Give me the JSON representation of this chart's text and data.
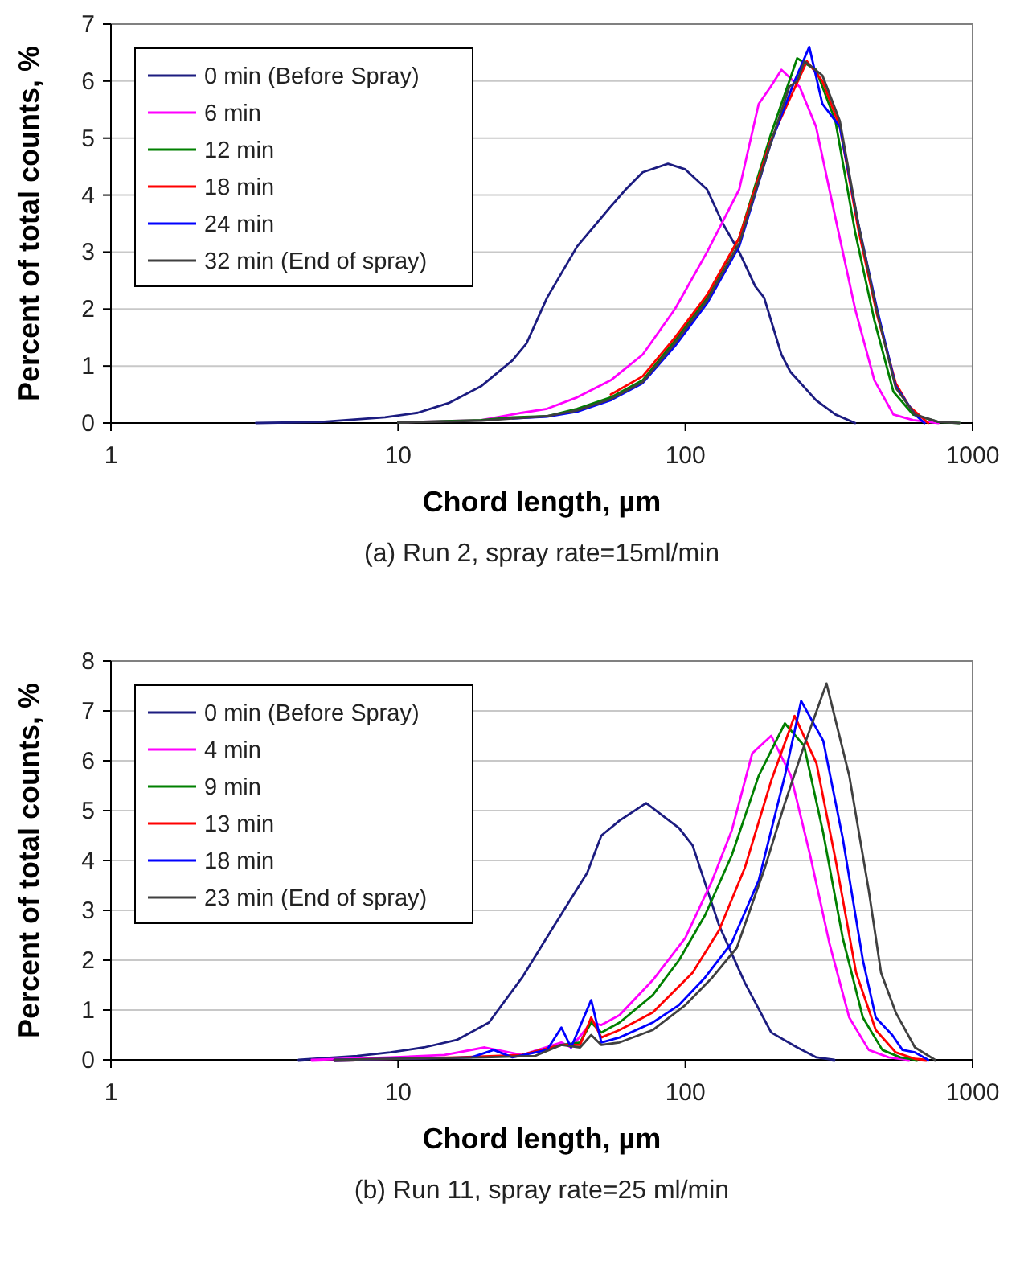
{
  "chart_data": [
    {
      "type": "line",
      "title": "(a) Run 2, spray rate=15ml/min",
      "xlabel": "Chord length, µm",
      "ylabel": "Percent of total counts, %",
      "log": "x",
      "grid": "y",
      "legend": "top left",
      "marker": "none",
      "line_style": "solid",
      "xlim": [
        1,
        1000
      ],
      "xticks": [
        1,
        10,
        100,
        1000
      ],
      "ylim": [
        0,
        7
      ],
      "yticks": [
        0,
        1,
        2,
        3,
        4,
        5,
        6,
        7
      ],
      "series": [
        {
          "name": "0 min (Before Spray)",
          "color": "#1c1c80",
          "x": [
            3.2,
            5.4,
            9,
            11.7,
            15,
            19.5,
            25,
            28,
            33,
            42,
            55,
            62,
            71,
            87,
            100,
            119,
            135,
            154,
            175,
            188,
            216,
            232,
            285,
            333,
            390
          ],
          "values": [
            0,
            0.02,
            0.1,
            0.18,
            0.35,
            0.65,
            1.1,
            1.4,
            2.2,
            3.1,
            3.8,
            4.1,
            4.4,
            4.55,
            4.45,
            4.1,
            3.5,
            3.0,
            2.4,
            2.2,
            1.2,
            0.9,
            0.4,
            0.15,
            0
          ]
        },
        {
          "name": "6 min",
          "color": "#ff00ff",
          "x": [
            10,
            19.5,
            27,
            33,
            42,
            55,
            71,
            92,
            119,
            154,
            180,
            198,
            216,
            250,
            285,
            333,
            390,
            455,
            530,
            620,
            760
          ],
          "values": [
            0.01,
            0.05,
            0.18,
            0.25,
            0.45,
            0.75,
            1.2,
            2.0,
            3.0,
            4.1,
            5.6,
            5.9,
            6.2,
            5.9,
            5.2,
            3.6,
            2.0,
            0.75,
            0.15,
            0.05,
            0
          ]
        },
        {
          "name": "12 min",
          "color": "#008000",
          "x": [
            10,
            19.5,
            25,
            33,
            42,
            55,
            71,
            92,
            119,
            154,
            198,
            245,
            285,
            333,
            390,
            455,
            530,
            620,
            760,
            900
          ],
          "values": [
            0.01,
            0.05,
            0.1,
            0.12,
            0.25,
            0.45,
            0.75,
            1.45,
            2.2,
            3.25,
            5.05,
            6.4,
            6.2,
            5.3,
            3.35,
            1.8,
            0.55,
            0.15,
            0.02,
            0
          ]
        },
        {
          "name": "18 min",
          "color": "#ff0000",
          "x": [
            55,
            71,
            92,
            119,
            154,
            198,
            265,
            300,
            345,
            400,
            465,
            540,
            600,
            700
          ],
          "values": [
            0.5,
            0.82,
            1.5,
            2.25,
            3.25,
            4.95,
            6.35,
            6.0,
            5.2,
            3.4,
            1.9,
            0.7,
            0.3,
            0
          ]
        },
        {
          "name": "24 min",
          "color": "#0000ff",
          "x": [
            25,
            33,
            42,
            55,
            71,
            92,
            119,
            154,
            198,
            240,
            270,
            300,
            345,
            400,
            465,
            540,
            630,
            680
          ],
          "values": [
            0.08,
            0.11,
            0.2,
            0.4,
            0.7,
            1.35,
            2.1,
            3.1,
            4.9,
            6.0,
            6.6,
            5.6,
            5.2,
            3.5,
            2.0,
            0.65,
            0.15,
            0
          ]
        },
        {
          "name": "32 min (End of spray)",
          "color": "#404040",
          "x": [
            10,
            19.5,
            25,
            33,
            42,
            55,
            71,
            92,
            119,
            154,
            198,
            230,
            245,
            260,
            300,
            345,
            400,
            465,
            540,
            630,
            760,
            900
          ],
          "values": [
            0.01,
            0.04,
            0.08,
            0.12,
            0.22,
            0.42,
            0.72,
            1.4,
            2.15,
            3.15,
            4.9,
            5.9,
            6.0,
            6.35,
            6.1,
            5.3,
            3.5,
            1.95,
            0.62,
            0.15,
            0.02,
            0
          ]
        }
      ]
    },
    {
      "type": "line",
      "title": "(b) Run 11, spray rate=25 ml/min",
      "xlabel": "Chord length, µm",
      "ylabel": "Percent of total counts, %",
      "log": "x",
      "grid": "y",
      "legend": "top left",
      "marker": "none",
      "line_style": "solid",
      "xlim": [
        1,
        1000
      ],
      "xticks": [
        1,
        10,
        100,
        1000
      ],
      "ylim": [
        0,
        8
      ],
      "yticks": [
        0,
        1,
        2,
        3,
        4,
        5,
        6,
        7,
        8
      ],
      "series": [
        {
          "name": "0 min (Before Spray)",
          "color": "#1c1c80",
          "x": [
            4.5,
            7.2,
            9.4,
            12.3,
            16,
            20.7,
            27,
            35,
            45.5,
            51,
            59,
            73,
            95,
            106,
            131,
            161,
            199,
            245,
            286,
            330
          ],
          "values": [
            0,
            0.08,
            0.15,
            0.25,
            0.4,
            0.75,
            1.65,
            2.7,
            3.75,
            4.5,
            4.8,
            5.15,
            4.65,
            4.3,
            2.7,
            1.55,
            0.55,
            0.25,
            0.05,
            0
          ]
        },
        {
          "name": "4 min",
          "color": "#ff00ff",
          "x": [
            5,
            9.4,
            14.5,
            20,
            27,
            37,
            40,
            47,
            51,
            59,
            77,
            100,
            124,
            145,
            171,
            199,
            233,
            272,
            317,
            372,
            435,
            510,
            600
          ],
          "values": [
            0,
            0.05,
            0.1,
            0.25,
            0.1,
            0.35,
            0.25,
            0.75,
            0.7,
            0.9,
            1.6,
            2.45,
            3.6,
            4.6,
            6.15,
            6.5,
            5.7,
            4.1,
            2.35,
            0.85,
            0.2,
            0.05,
            0
          ]
        },
        {
          "name": "9 min",
          "color": "#008000",
          "x": [
            27,
            37,
            43,
            47,
            51,
            59,
            77,
            95,
            117,
            145,
            180,
            222,
            259,
            302,
            353,
            415,
            485,
            560,
            640
          ],
          "values": [
            0.1,
            0.3,
            0.35,
            0.75,
            0.55,
            0.75,
            1.3,
            2.0,
            2.9,
            4.1,
            5.7,
            6.75,
            6.3,
            4.55,
            2.45,
            0.85,
            0.2,
            0.05,
            0
          ]
        },
        {
          "name": "13 min",
          "color": "#ff0000",
          "x": [
            6,
            9.4,
            16,
            27,
            37,
            43,
            47,
            51,
            59,
            77,
            106,
            131,
            161,
            199,
            240,
            286,
            335,
            393,
            460,
            540,
            630,
            690
          ],
          "values": [
            0,
            0.02,
            0.05,
            0.1,
            0.3,
            0.3,
            0.85,
            0.45,
            0.6,
            0.95,
            1.75,
            2.6,
            3.85,
            5.6,
            6.9,
            5.95,
            3.95,
            1.75,
            0.6,
            0.15,
            0.02,
            0
          ]
        },
        {
          "name": "18 min",
          "color": "#0000ff",
          "x": [
            6,
            12,
            18,
            21.5,
            25,
            33,
            37,
            40,
            47,
            51,
            59,
            77,
            95,
            117,
            145,
            180,
            222,
            253,
            302,
            353,
            415,
            460,
            525,
            570,
            630,
            700
          ],
          "values": [
            0,
            0.03,
            0.05,
            0.2,
            0.05,
            0.2,
            0.65,
            0.25,
            1.2,
            0.35,
            0.45,
            0.75,
            1.1,
            1.65,
            2.35,
            3.6,
            5.7,
            7.2,
            6.4,
            4.45,
            2.0,
            0.85,
            0.5,
            0.2,
            0.15,
            0
          ]
        },
        {
          "name": "23 min (End of spray)",
          "color": "#404040",
          "x": [
            6,
            12,
            20,
            30,
            37,
            43,
            47,
            51,
            59,
            77,
            100,
            124,
            151,
            189,
            222,
            259,
            310,
            372,
            435,
            480,
            540,
            630,
            740
          ],
          "values": [
            0,
            0.03,
            0.05,
            0.08,
            0.3,
            0.25,
            0.5,
            0.3,
            0.35,
            0.6,
            1.1,
            1.65,
            2.25,
            3.85,
            5.15,
            6.3,
            7.55,
            5.7,
            3.4,
            1.75,
            0.95,
            0.25,
            0
          ]
        }
      ]
    }
  ]
}
